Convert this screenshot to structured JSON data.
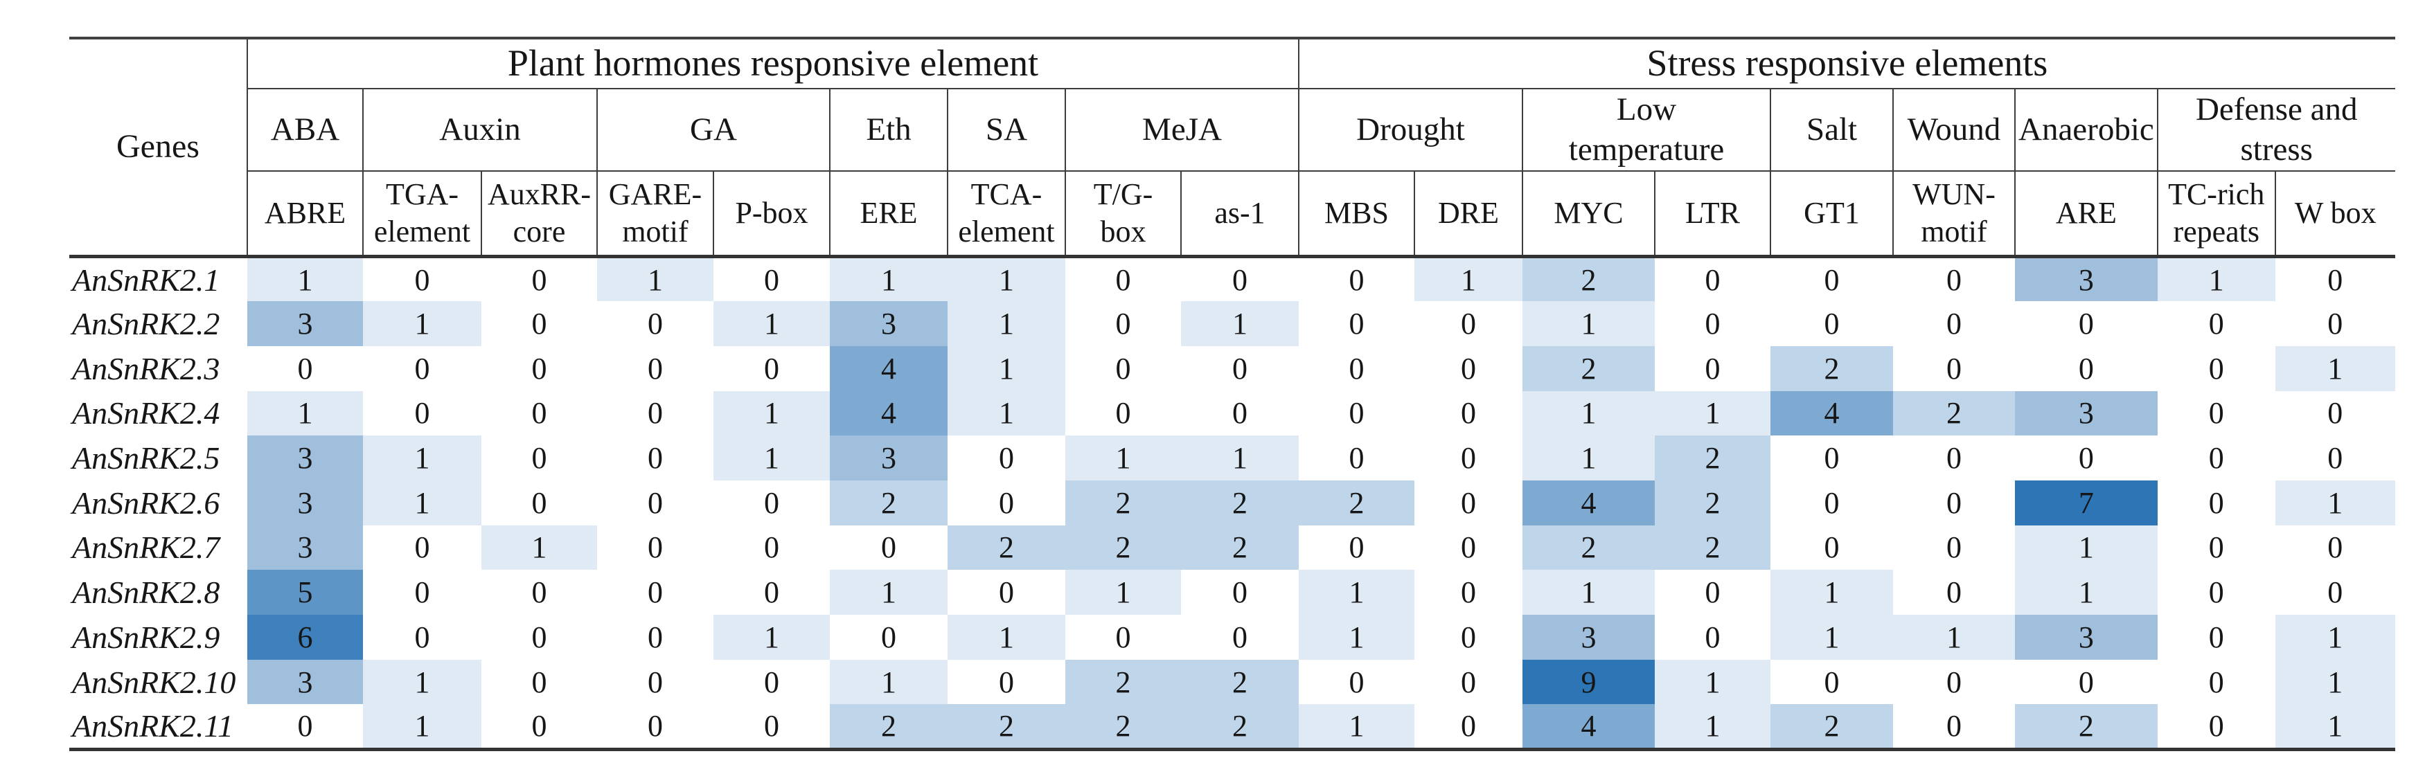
{
  "table": {
    "genes_header": "Genes",
    "groups": [
      {
        "label": "Plant hormones responsive element",
        "children": [
          {
            "label": "ABA",
            "sub": [
              "ABRE"
            ]
          },
          {
            "label": "Auxin",
            "sub": [
              "TGA-\nelement",
              "AuxRR-\ncore"
            ]
          },
          {
            "label": "GA",
            "sub": [
              "GARE-\nmotif",
              "P-box"
            ]
          },
          {
            "label": "Eth",
            "sub": [
              "ERE"
            ]
          },
          {
            "label": "SA",
            "sub": [
              "TCA-\nelement"
            ]
          },
          {
            "label": "MeJA",
            "sub": [
              "T/G-\nbox",
              "as-1"
            ]
          }
        ]
      },
      {
        "label": "Stress responsive elements",
        "children": [
          {
            "label": "Drought",
            "sub": [
              "MBS",
              "DRE"
            ]
          },
          {
            "label": "Low\ntemperature",
            "sub": [
              "MYC",
              "LTR"
            ]
          },
          {
            "label": "Salt",
            "sub": [
              "GT1"
            ]
          },
          {
            "label": "Wound",
            "sub": [
              "WUN-\nmotif"
            ]
          },
          {
            "label": "Anaerobic",
            "sub": [
              "ARE"
            ]
          },
          {
            "label": "Defense and\nstress",
            "sub": [
              "TC-rich\nrepeats",
              "W box"
            ]
          }
        ]
      }
    ],
    "column_order": [
      "ABRE",
      "TGA-element",
      "AuxRR-core",
      "GARE-motif",
      "P-box",
      "ERE",
      "TCA-element",
      "T/G-box",
      "as-1",
      "MBS",
      "DRE",
      "MYC",
      "LTR",
      "GT1",
      "WUN-motif",
      "ARE",
      "TC-rich repeats",
      "W box"
    ],
    "rows": [
      {
        "gene": "AnSnRK2.1",
        "values": [
          1,
          0,
          0,
          1,
          0,
          1,
          1,
          0,
          0,
          0,
          1,
          2,
          0,
          0,
          0,
          3,
          1,
          0
        ]
      },
      {
        "gene": "AnSnRK2.2",
        "values": [
          3,
          1,
          0,
          0,
          1,
          3,
          1,
          0,
          1,
          0,
          0,
          1,
          0,
          0,
          0,
          0,
          0,
          0
        ]
      },
      {
        "gene": "AnSnRK2.3",
        "values": [
          0,
          0,
          0,
          0,
          0,
          4,
          1,
          0,
          0,
          0,
          0,
          2,
          0,
          2,
          0,
          0,
          0,
          1
        ]
      },
      {
        "gene": "AnSnRK2.4",
        "values": [
          1,
          0,
          0,
          0,
          1,
          4,
          1,
          0,
          0,
          0,
          0,
          1,
          1,
          4,
          2,
          3,
          0,
          0
        ]
      },
      {
        "gene": "AnSnRK2.5",
        "values": [
          3,
          1,
          0,
          0,
          1,
          3,
          0,
          1,
          1,
          0,
          0,
          1,
          2,
          0,
          0,
          0,
          0,
          0
        ]
      },
      {
        "gene": "AnSnRK2.6",
        "values": [
          3,
          1,
          0,
          0,
          0,
          2,
          0,
          2,
          2,
          2,
          0,
          4,
          2,
          0,
          0,
          7,
          0,
          1
        ]
      },
      {
        "gene": "AnSnRK2.7",
        "values": [
          3,
          0,
          1,
          0,
          0,
          0,
          2,
          2,
          2,
          0,
          0,
          2,
          2,
          0,
          0,
          1,
          0,
          0
        ]
      },
      {
        "gene": "AnSnRK2.8",
        "values": [
          5,
          0,
          0,
          0,
          0,
          1,
          0,
          1,
          0,
          1,
          0,
          1,
          0,
          1,
          0,
          1,
          0,
          0
        ]
      },
      {
        "gene": "AnSnRK2.9",
        "values": [
          6,
          0,
          0,
          0,
          1,
          0,
          1,
          0,
          0,
          1,
          0,
          3,
          0,
          1,
          1,
          3,
          0,
          1
        ]
      },
      {
        "gene": "AnSnRK2.10",
        "values": [
          3,
          1,
          0,
          0,
          0,
          1,
          0,
          2,
          2,
          0,
          0,
          9,
          1,
          0,
          0,
          0,
          0,
          1
        ]
      },
      {
        "gene": "AnSnRK2.11",
        "values": [
          0,
          1,
          0,
          0,
          0,
          2,
          2,
          2,
          2,
          1,
          0,
          4,
          1,
          2,
          0,
          2,
          0,
          1
        ]
      }
    ],
    "heatmap": {
      "zero_color": "#FFFFFF",
      "max_color": "#2E75B6",
      "saturate_value": 6.5
    }
  }
}
